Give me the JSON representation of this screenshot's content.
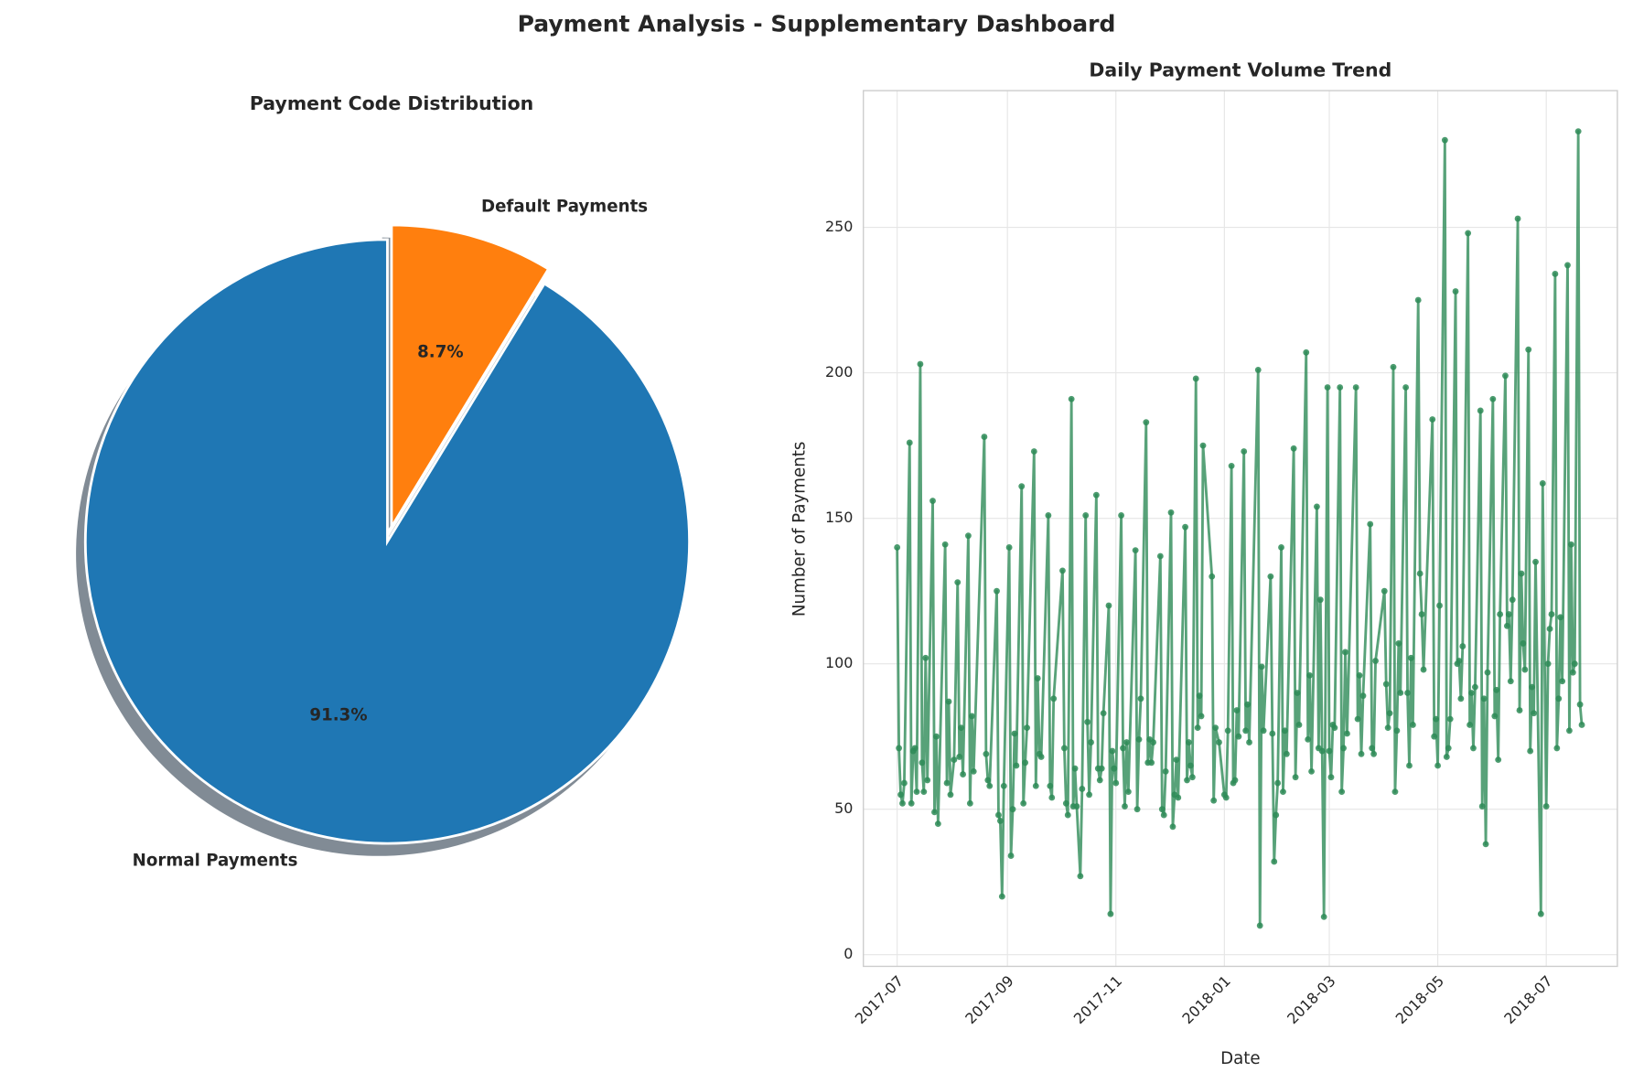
{
  "title": "Payment Analysis - Supplementary Dashboard",
  "chart_data": [
    {
      "type": "pie",
      "title": "Payment Code Distribution",
      "categories": [
        "Normal Payments",
        "Default Payments"
      ],
      "values": [
        91.3,
        8.7
      ],
      "value_labels": [
        "91.3%",
        "8.7%"
      ],
      "colors": [
        "#1f77b4",
        "#ff7f0e"
      ],
      "explode": [
        0,
        0.05
      ],
      "startangle": 90,
      "shadow": true
    },
    {
      "type": "line",
      "title": "Daily Payment Volume Trend",
      "xlabel": "Date",
      "ylabel": "Number of Payments",
      "color": "#2e8b57",
      "grid": true,
      "xlim": [
        "2017-06-12",
        "2018-08-10"
      ],
      "ylim": [
        -4,
        297
      ],
      "xticks": [
        {
          "value": "2017-07-01",
          "label": "2017-07"
        },
        {
          "value": "2017-09-01",
          "label": "2017-09"
        },
        {
          "value": "2017-11-01",
          "label": "2017-11"
        },
        {
          "value": "2018-01-01",
          "label": "2018-01"
        },
        {
          "value": "2018-03-01",
          "label": "2018-03"
        },
        {
          "value": "2018-05-01",
          "label": "2018-05"
        },
        {
          "value": "2018-07-01",
          "label": "2018-07"
        }
      ],
      "yticks": [
        0,
        50,
        100,
        150,
        200,
        250
      ],
      "x": [
        "2017-07-01",
        "2017-07-02",
        "2017-07-03",
        "2017-07-04",
        "2017-07-05",
        "2017-07-08",
        "2017-07-09",
        "2017-07-10",
        "2017-07-11",
        "2017-07-12",
        "2017-07-14",
        "2017-07-15",
        "2017-07-16",
        "2017-07-17",
        "2017-07-18",
        "2017-07-21",
        "2017-07-22",
        "2017-07-23",
        "2017-07-24",
        "2017-07-28",
        "2017-07-29",
        "2017-07-30",
        "2017-07-31",
        "2017-08-02",
        "2017-08-04",
        "2017-08-05",
        "2017-08-06",
        "2017-08-07",
        "2017-08-10",
        "2017-08-11",
        "2017-08-12",
        "2017-08-13",
        "2017-08-19",
        "2017-08-20",
        "2017-08-21",
        "2017-08-22",
        "2017-08-26",
        "2017-08-27",
        "2017-08-28",
        "2017-08-29",
        "2017-08-30",
        "2017-09-02",
        "2017-09-03",
        "2017-09-04",
        "2017-09-05",
        "2017-09-06",
        "2017-09-09",
        "2017-09-10",
        "2017-09-11",
        "2017-09-12",
        "2017-09-16",
        "2017-09-17",
        "2017-09-18",
        "2017-09-19",
        "2017-09-20",
        "2017-09-24",
        "2017-09-25",
        "2017-09-26",
        "2017-09-27",
        "2017-10-02",
        "2017-10-03",
        "2017-10-04",
        "2017-10-05",
        "2017-10-07",
        "2017-10-08",
        "2017-10-09",
        "2017-10-10",
        "2017-10-12",
        "2017-10-13",
        "2017-10-15",
        "2017-10-16",
        "2017-10-17",
        "2017-10-18",
        "2017-10-21",
        "2017-10-22",
        "2017-10-23",
        "2017-10-24",
        "2017-10-25",
        "2017-10-28",
        "2017-10-29",
        "2017-10-30",
        "2017-10-31",
        "2017-11-01",
        "2017-11-04",
        "2017-11-05",
        "2017-11-06",
        "2017-11-07",
        "2017-11-08",
        "2017-11-12",
        "2017-11-13",
        "2017-11-14",
        "2017-11-15",
        "2017-11-18",
        "2017-11-19",
        "2017-11-20",
        "2017-11-21",
        "2017-11-22",
        "2017-11-26",
        "2017-11-27",
        "2017-11-28",
        "2017-11-29",
        "2017-12-02",
        "2017-12-03",
        "2017-12-04",
        "2017-12-05",
        "2017-12-06",
        "2017-12-10",
        "2017-12-11",
        "2017-12-12",
        "2017-12-13",
        "2017-12-14",
        "2017-12-16",
        "2017-12-17",
        "2017-12-18",
        "2017-12-19",
        "2017-12-20",
        "2017-12-25",
        "2017-12-26",
        "2017-12-27",
        "2017-12-29",
        "2018-01-01",
        "2018-01-02",
        "2018-01-03",
        "2018-01-05",
        "2018-01-06",
        "2018-01-07",
        "2018-01-08",
        "2018-01-09",
        "2018-01-12",
        "2018-01-13",
        "2018-01-14",
        "2018-01-15",
        "2018-01-20",
        "2018-01-21",
        "2018-01-22",
        "2018-01-23",
        "2018-01-27",
        "2018-01-28",
        "2018-01-29",
        "2018-01-30",
        "2018-01-31",
        "2018-02-02",
        "2018-02-03",
        "2018-02-04",
        "2018-02-05",
        "2018-02-09",
        "2018-02-10",
        "2018-02-11",
        "2018-02-12",
        "2018-02-16",
        "2018-02-17",
        "2018-02-18",
        "2018-02-19",
        "2018-02-22",
        "2018-02-23",
        "2018-02-24",
        "2018-02-25",
        "2018-02-26",
        "2018-02-28",
        "2018-03-01",
        "2018-03-02",
        "2018-03-03",
        "2018-03-04",
        "2018-03-07",
        "2018-03-08",
        "2018-03-09",
        "2018-03-10",
        "2018-03-11",
        "2018-03-16",
        "2018-03-17",
        "2018-03-18",
        "2018-03-19",
        "2018-03-20",
        "2018-03-24",
        "2018-03-25",
        "2018-03-26",
        "2018-03-27",
        "2018-04-01",
        "2018-04-02",
        "2018-04-03",
        "2018-04-04",
        "2018-04-06",
        "2018-04-07",
        "2018-04-08",
        "2018-04-09",
        "2018-04-10",
        "2018-04-13",
        "2018-04-14",
        "2018-04-15",
        "2018-04-16",
        "2018-04-17",
        "2018-04-20",
        "2018-04-21",
        "2018-04-22",
        "2018-04-23",
        "2018-04-28",
        "2018-04-29",
        "2018-04-30",
        "2018-05-01",
        "2018-05-02",
        "2018-05-05",
        "2018-05-06",
        "2018-05-07",
        "2018-05-08",
        "2018-05-11",
        "2018-05-12",
        "2018-05-13",
        "2018-05-14",
        "2018-05-15",
        "2018-05-18",
        "2018-05-19",
        "2018-05-20",
        "2018-05-21",
        "2018-05-22",
        "2018-05-25",
        "2018-05-26",
        "2018-05-27",
        "2018-05-28",
        "2018-05-29",
        "2018-06-01",
        "2018-06-02",
        "2018-06-03",
        "2018-06-04",
        "2018-06-05",
        "2018-06-08",
        "2018-06-09",
        "2018-06-10",
        "2018-06-11",
        "2018-06-12",
        "2018-06-15",
        "2018-06-16",
        "2018-06-17",
        "2018-06-18",
        "2018-06-19",
        "2018-06-21",
        "2018-06-22",
        "2018-06-23",
        "2018-06-24",
        "2018-06-25",
        "2018-06-28",
        "2018-06-29",
        "2018-07-01",
        "2018-07-02",
        "2018-07-03",
        "2018-07-04",
        "2018-07-06",
        "2018-07-07",
        "2018-07-08",
        "2018-07-09",
        "2018-07-10",
        "2018-07-13",
        "2018-07-14",
        "2018-07-15",
        "2018-07-16",
        "2018-07-17",
        "2018-07-19",
        "2018-07-20",
        "2018-07-21"
      ],
      "values": [
        140,
        71,
        55,
        52,
        59,
        176,
        52,
        70,
        71,
        56,
        203,
        66,
        56,
        102,
        60,
        156,
        49,
        75,
        45,
        141,
        59,
        87,
        55,
        67,
        128,
        68,
        78,
        62,
        144,
        52,
        82,
        63,
        178,
        69,
        60,
        58,
        125,
        48,
        46,
        20,
        58,
        140,
        34,
        50,
        76,
        65,
        161,
        52,
        66,
        78,
        173,
        58,
        95,
        69,
        68,
        151,
        58,
        54,
        88,
        132,
        71,
        52,
        48,
        191,
        51,
        64,
        51,
        27,
        57,
        151,
        80,
        55,
        73,
        158,
        64,
        60,
        64,
        83,
        120,
        14,
        70,
        64,
        59,
        151,
        71,
        51,
        73,
        56,
        139,
        50,
        74,
        88,
        183,
        66,
        74,
        66,
        73,
        137,
        50,
        48,
        63,
        152,
        44,
        55,
        67,
        54,
        147,
        60,
        73,
        65,
        61,
        198,
        78,
        89,
        82,
        175,
        130,
        53,
        78,
        73,
        55,
        54,
        77,
        168,
        59,
        60,
        84,
        75,
        173,
        77,
        86,
        73,
        201,
        10,
        99,
        77,
        130,
        76,
        32,
        48,
        59,
        140,
        56,
        77,
        69,
        174,
        61,
        90,
        79,
        207,
        74,
        96,
        63,
        154,
        71,
        122,
        70,
        13,
        195,
        70,
        61,
        79,
        78,
        195,
        56,
        71,
        104,
        76,
        195,
        81,
        96,
        69,
        89,
        148,
        71,
        69,
        101,
        125,
        93,
        78,
        83,
        202,
        56,
        77,
        107,
        90,
        195,
        90,
        65,
        102,
        79,
        225,
        131,
        117,
        98,
        184,
        75,
        81,
        65,
        120,
        280,
        68,
        71,
        81,
        228,
        100,
        101,
        88,
        106,
        248,
        79,
        90,
        71,
        92,
        187,
        51,
        88,
        38,
        97,
        191,
        82,
        91,
        67,
        117,
        199,
        113,
        117,
        94,
        122,
        253,
        84,
        131,
        107,
        98,
        208,
        70,
        92,
        83,
        135,
        14,
        162,
        51,
        100,
        112,
        117,
        234,
        71,
        88,
        116,
        94,
        237,
        77,
        141,
        97,
        100,
        283,
        86,
        79
      ]
    }
  ]
}
